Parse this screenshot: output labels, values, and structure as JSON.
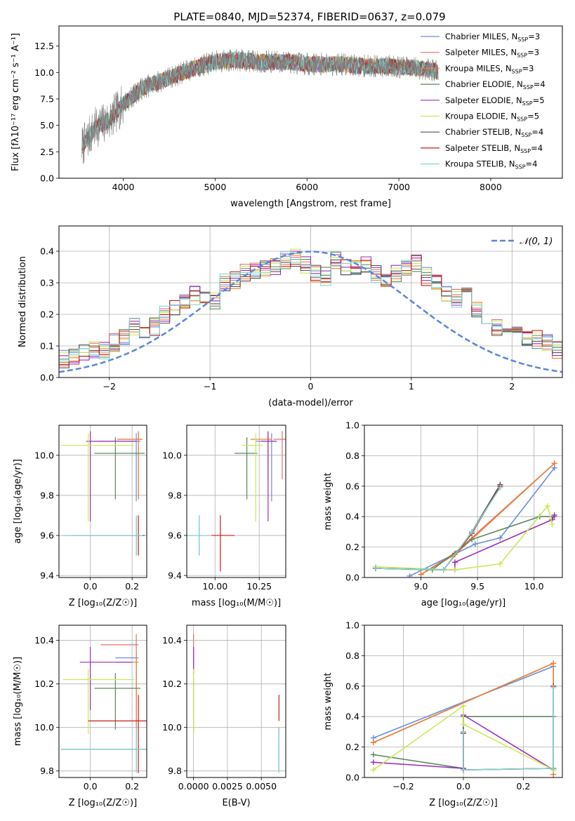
{
  "title": "PLATE=0840, MJD=52374, FIBERID=0637, z=0.079",
  "colors": {
    "Chabrier MILES": "#6a8fd8",
    "Salpeter MILES": "#e0726a",
    "Kroupa MILES": "#e8823a",
    "Chabrier ELODIE": "#5a8a5a",
    "Salpeter ELODIE": "#9a2fb8",
    "Kroupa ELODIE": "#cce85a",
    "Chabrier STELIB": "#555555",
    "Salpeter STELIB": "#c81e1e",
    "Kroupa STELIB": "#7fd8d8",
    "normal": "#5b86d6",
    "spectrum": "#808080"
  },
  "chart_data": [
    {
      "id": "spectrum",
      "type": "line",
      "xlabel": "wavelength [Angstrom, rest frame]",
      "ylabel": "Flux [fλ10⁻¹⁷ erg cm⁻² s⁻¹ A⁻¹]",
      "xlim": [
        3300,
        8780
      ],
      "ylim": [
        0,
        14.4
      ],
      "xticks": [
        4000,
        5000,
        6000,
        7000,
        8000
      ],
      "yticks": [
        0.0,
        2.5,
        5.0,
        7.5,
        10.0,
        12.5
      ],
      "grid": false,
      "legend_position": "right",
      "legend": [
        {
          "prefix": "Chabrier MILES, N",
          "sub": "SSP",
          "suffix": "=3",
          "model": "Chabrier MILES"
        },
        {
          "prefix": "Salpeter MILES, N",
          "sub": "SSP",
          "suffix": "=3",
          "model": "Salpeter MILES"
        },
        {
          "prefix": "Kroupa MILES, N",
          "sub": "SSP",
          "suffix": "=3",
          "model": "Kroupa MILES"
        },
        {
          "prefix": "Chabrier ELODIE, N",
          "sub": "SSP",
          "suffix": "=4",
          "model": "Chabrier ELODIE"
        },
        {
          "prefix": "Salpeter ELODIE, N",
          "sub": "SSP",
          "suffix": "=5",
          "model": "Salpeter ELODIE"
        },
        {
          "prefix": "Kroupa ELODIE, N",
          "sub": "SSP",
          "suffix": "=5",
          "model": "Kroupa ELODIE"
        },
        {
          "prefix": "Chabrier STELIB, N",
          "sub": "SSP",
          "suffix": "=4",
          "model": "Chabrier STELIB"
        },
        {
          "prefix": "Salpeter STELIB, N",
          "sub": "SSP",
          "suffix": "=4",
          "model": "Salpeter STELIB"
        },
        {
          "prefix": "Kroupa STELIB, N",
          "sub": "SSP",
          "suffix": "=4",
          "model": "Kroupa STELIB"
        }
      ],
      "continuum_x": [
        3550,
        3700,
        3850,
        4000,
        4200,
        4500,
        4800,
        5000,
        5200,
        5500,
        5800,
        6000,
        6300,
        6600,
        6900,
        7200,
        7400,
        7420
      ],
      "continuum_y": [
        3.0,
        4.8,
        5.5,
        7.0,
        8.5,
        9.5,
        10.5,
        11.0,
        11.2,
        11.0,
        11.0,
        10.8,
        10.8,
        10.6,
        10.6,
        10.4,
        10.2,
        10.0
      ],
      "observed_range": [
        3550,
        7430
      ]
    },
    {
      "id": "residuals",
      "type": "histogram",
      "xlabel": "(data-model)/error",
      "ylabel": "Normed distribution",
      "xlim": [
        -2.5,
        2.5
      ],
      "ylim": [
        0,
        0.48
      ],
      "xticks": [
        -2,
        -1,
        0,
        1,
        2
      ],
      "yticks": [
        0.0,
        0.1,
        0.2,
        0.3,
        0.4
      ],
      "grid": true,
      "legend_position": "top-right",
      "legend_label": "𝒩(0, 1)",
      "bin_width": 0.1,
      "base_values": [
        0.035,
        0.035,
        0.04,
        0.065,
        0.065,
        0.06,
        0.07,
        0.08,
        0.085,
        0.085,
        0.11,
        0.13,
        0.16,
        0.13,
        0.16,
        0.2,
        0.22,
        0.24,
        0.26,
        0.26,
        0.24,
        0.3,
        0.31,
        0.33,
        0.34,
        0.34,
        0.35,
        0.37,
        0.38,
        0.36,
        0.33,
        0.32,
        0.37,
        0.35,
        0.35,
        0.36,
        0.33,
        0.31,
        0.33,
        0.35,
        0.36,
        0.32,
        0.3,
        0.27,
        0.25,
        0.26,
        0.22,
        0.2,
        0.16,
        0.14,
        0.14,
        0.13,
        0.12,
        0.11,
        0.09,
        0.08,
        0.07,
        0.06,
        0.05,
        0.04
      ],
      "base_start": -3.0
    },
    {
      "id": "age-vs-Z",
      "type": "errorbar",
      "xlabel": "Z [log₁₀(Z/Z☉)]",
      "ylabel": "age  [log₁₀(age/yr)]",
      "xlim": [
        -0.15,
        0.27
      ],
      "ylim": [
        9.39,
        10.15
      ],
      "xticks": [
        0.0,
        0.2
      ],
      "yticks": [
        9.4,
        9.6,
        9.8,
        10.0
      ],
      "grid": true,
      "points": [
        {
          "model": "Chabrier MILES",
          "x": 0.22,
          "y": 10.07,
          "xerr": [
            0.18,
            0.02
          ],
          "yerr": [
            0.3,
            0.04
          ]
        },
        {
          "model": "Salpeter MILES",
          "x": 0.23,
          "y": 10.08,
          "xerr": [
            0.1,
            0.02
          ],
          "yerr": [
            0.3,
            0.04
          ]
        },
        {
          "model": "Kroupa MILES",
          "x": 0.23,
          "y": 10.08,
          "xerr": [
            0.1,
            0.02
          ],
          "yerr": [
            0.3,
            0.03
          ]
        },
        {
          "model": "Chabrier ELODIE",
          "x": 0.12,
          "y": 10.01,
          "xerr": [
            0.1,
            0.14
          ],
          "yerr": [
            0.23,
            0.08
          ]
        },
        {
          "model": "Salpeter ELODIE",
          "x": 0.0,
          "y": 10.07,
          "xerr": [
            0.02,
            0.22
          ],
          "yerr": [
            0.4,
            0.05
          ]
        },
        {
          "model": "Kroupa ELODIE",
          "x": -0.01,
          "y": 10.05,
          "xerr": [
            0.13,
            0.22
          ],
          "yerr": [
            0.38,
            0.06
          ]
        },
        {
          "model": "Chabrier STELIB",
          "x": 0.22,
          "y": 9.6,
          "xerr": [
            0.35,
            0.04
          ],
          "yerr": [
            0.1,
            0.1
          ]
        },
        {
          "model": "Salpeter STELIB",
          "x": 0.23,
          "y": 9.6,
          "xerr": [
            0.32,
            0.02
          ],
          "yerr": [
            0.1,
            0.1
          ]
        },
        {
          "model": "Kroupa STELIB",
          "x": 0.22,
          "y": 9.6,
          "xerr": [
            0.35,
            0.03
          ],
          "yerr": [
            0.1,
            0.1
          ]
        }
      ]
    },
    {
      "id": "age-vs-mass",
      "type": "errorbar",
      "xlabel": "mass [log₁₀(M/M☉)]",
      "ylabel": "",
      "xlim": [
        9.84,
        10.4
      ],
      "ylim": [
        9.39,
        10.15
      ],
      "xticks": [
        10.0,
        10.25
      ],
      "yticks": [
        9.4,
        9.6,
        9.8,
        10.0
      ],
      "grid": true,
      "points": [
        {
          "model": "Chabrier MILES",
          "x": 10.32,
          "y": 10.07,
          "xerr": [
            0.09,
            0.02
          ],
          "yerr": [
            0.3,
            0.04
          ]
        },
        {
          "model": "Salpeter MILES",
          "x": 10.38,
          "y": 10.08,
          "xerr": [
            0.05,
            0.03
          ],
          "yerr": [
            0.2,
            0.04
          ]
        },
        {
          "model": "Kroupa MILES",
          "x": 10.3,
          "y": 10.08,
          "xerr": [
            0.1,
            0.02
          ],
          "yerr": [
            0.2,
            0.03
          ]
        },
        {
          "model": "Chabrier ELODIE",
          "x": 10.18,
          "y": 10.01,
          "xerr": [
            0.07,
            0.06
          ],
          "yerr": [
            0.23,
            0.08
          ]
        },
        {
          "model": "Salpeter ELODIE",
          "x": 10.3,
          "y": 10.07,
          "xerr": [
            0.04,
            0.05
          ],
          "yerr": [
            0.4,
            0.05
          ]
        },
        {
          "model": "Kroupa ELODIE",
          "x": 10.23,
          "y": 10.05,
          "xerr": [
            0.08,
            0.04
          ],
          "yerr": [
            0.38,
            0.06
          ]
        },
        {
          "model": "Chabrier STELIB",
          "x": 9.91,
          "y": 9.6,
          "xerr": [
            0.07,
            0.06
          ],
          "yerr": [
            0.1,
            0.1
          ]
        },
        {
          "model": "Salpeter STELIB",
          "x": 10.03,
          "y": 9.6,
          "xerr": [
            0.05,
            0.08
          ],
          "yerr": [
            0.18,
            0.1
          ]
        },
        {
          "model": "Kroupa STELIB",
          "x": 9.91,
          "y": 9.6,
          "xerr": [
            0.07,
            0.06
          ],
          "yerr": [
            0.1,
            0.1
          ]
        }
      ]
    },
    {
      "id": "weight-vs-age",
      "type": "line",
      "xlabel": "age  [log₁₀(age/yr)]",
      "ylabel": "mass weight",
      "xlim": [
        8.5,
        10.25
      ],
      "ylim": [
        0,
        1.0
      ],
      "xticks": [
        9.0,
        9.5,
        10.0
      ],
      "yticks": [
        0.0,
        0.2,
        0.4,
        0.6,
        0.8,
        1.0
      ],
      "grid": true,
      "series": [
        {
          "model": "Chabrier MILES",
          "x": [
            8.9,
            9.48,
            9.7,
            10.18
          ],
          "y": [
            0.01,
            0.22,
            0.26,
            0.72
          ]
        },
        {
          "model": "Salpeter MILES",
          "x": [
            9.0,
            9.3,
            10.18
          ],
          "y": [
            0.02,
            0.16,
            0.75
          ]
        },
        {
          "model": "Kroupa MILES",
          "x": [
            9.0,
            9.3,
            10.18
          ],
          "y": [
            0.02,
            0.15,
            0.75
          ]
        },
        {
          "model": "Chabrier ELODIE",
          "x": [
            8.6,
            9.1,
            9.45,
            10.05,
            10.18
          ],
          "y": [
            0.06,
            0.05,
            0.25,
            0.4,
            0.4
          ]
        },
        {
          "model": "Salpeter ELODIE",
          "x": [
            8.6,
            9.3,
            9.3,
            10.16,
            10.18
          ],
          "y": [
            0.06,
            0.05,
            0.1,
            0.38,
            0.41
          ]
        },
        {
          "model": "Kroupa ELODIE",
          "x": [
            8.6,
            9.3,
            9.7,
            10.12,
            10.16
          ],
          "y": [
            0.07,
            0.05,
            0.09,
            0.47,
            0.35
          ]
        },
        {
          "model": "Chabrier STELIB",
          "x": [
            8.6,
            9.2,
            9.45,
            9.7
          ],
          "y": [
            0.06,
            0.05,
            0.3,
            0.61
          ]
        },
        {
          "model": "Salpeter STELIB",
          "x": [
            8.6,
            9.2,
            9.45,
            9.7
          ],
          "y": [
            0.06,
            0.05,
            0.29,
            0.6
          ]
        },
        {
          "model": "Kroupa STELIB",
          "x": [
            8.6,
            9.2,
            9.45,
            9.7
          ],
          "y": [
            0.06,
            0.05,
            0.3,
            0.59
          ]
        }
      ]
    },
    {
      "id": "mass-vs-Z",
      "type": "errorbar",
      "xlabel": "Z [log₁₀(Z/Z☉)]",
      "ylabel": "mass [log₁₀(M/M☉)]",
      "xlim": [
        -0.15,
        0.27
      ],
      "ylim": [
        9.77,
        10.47
      ],
      "xticks": [
        0.0,
        0.2
      ],
      "yticks": [
        9.8,
        10.0,
        10.2,
        10.4
      ],
      "grid": true,
      "points": [
        {
          "model": "Chabrier MILES",
          "x": 0.22,
          "y": 10.32,
          "xerr": [
            0.1,
            0.01
          ],
          "yerr": [
            0.34,
            0.02
          ]
        },
        {
          "model": "Salpeter MILES",
          "x": 0.22,
          "y": 10.38,
          "xerr": [
            0.17,
            0.01
          ],
          "yerr": [
            0.36,
            0.05
          ]
        },
        {
          "model": "Kroupa MILES",
          "x": 0.22,
          "y": 10.3,
          "xerr": [
            0.1,
            0.01
          ],
          "yerr": [
            0.35,
            0.05
          ]
        },
        {
          "model": "Chabrier ELODIE",
          "x": 0.12,
          "y": 10.18,
          "xerr": [
            0.1,
            0.12
          ],
          "yerr": [
            0.19,
            0.07
          ]
        },
        {
          "model": "Salpeter ELODIE",
          "x": 0.0,
          "y": 10.3,
          "xerr": [
            0.05,
            0.2
          ],
          "yerr": [
            0.22,
            0.07
          ]
        },
        {
          "model": "Kroupa ELODIE",
          "x": -0.01,
          "y": 10.22,
          "xerr": [
            0.12,
            0.22
          ],
          "yerr": [
            0.25,
            0.05
          ]
        },
        {
          "model": "Chabrier STELIB",
          "x": 0.22,
          "y": 9.9,
          "xerr": [
            0.36,
            0.05
          ],
          "yerr": [
            0.1,
            0.1
          ]
        },
        {
          "model": "Salpeter STELIB",
          "x": 0.23,
          "y": 10.03,
          "xerr": [
            0.24,
            0.05
          ],
          "yerr": [
            0.24,
            0.12
          ]
        },
        {
          "model": "Kroupa STELIB",
          "x": 0.22,
          "y": 9.9,
          "xerr": [
            0.36,
            0.05
          ],
          "yerr": [
            0.11,
            0.1
          ]
        }
      ]
    },
    {
      "id": "mass-vs-EBV",
      "type": "errorbar",
      "xlabel": "E(B-V)",
      "ylabel": "",
      "xlim": [
        -0.0005,
        0.0068
      ],
      "ylim": [
        9.77,
        10.47
      ],
      "xticks": [
        0.0,
        0.0025,
        0.005
      ],
      "xticklabels": [
        "0.0000",
        "0.0025",
        "0.0050"
      ],
      "yticks": [
        9.8,
        10.0,
        10.2,
        10.4
      ],
      "grid": true,
      "points": [
        {
          "model": "Chabrier MILES",
          "x": 0.0,
          "y": 10.32,
          "xerr": [
            0,
            0
          ],
          "yerr": [
            0.05,
            0.05
          ]
        },
        {
          "model": "Salpeter MILES",
          "x": 0.0,
          "y": 10.38,
          "xerr": [
            0,
            0
          ],
          "yerr": [
            0.05,
            0.05
          ]
        },
        {
          "model": "Kroupa MILES",
          "x": 0.0,
          "y": 10.3,
          "xerr": [
            0,
            0
          ],
          "yerr": [
            0.05,
            0.05
          ]
        },
        {
          "model": "Chabrier ELODIE",
          "x": 0.0,
          "y": 10.18,
          "xerr": [
            0,
            0
          ],
          "yerr": [
            0.2,
            0.05
          ]
        },
        {
          "model": "Salpeter ELODIE",
          "x": 0.0,
          "y": 10.3,
          "xerr": [
            0,
            0
          ],
          "yerr": [
            0.06,
            0.07
          ]
        },
        {
          "model": "Kroupa ELODIE",
          "x": 0.0,
          "y": 10.22,
          "xerr": [
            0,
            0
          ],
          "yerr": [
            0.25,
            0.05
          ]
        },
        {
          "model": "Chabrier STELIB",
          "x": 0.0063,
          "y": 9.9,
          "xerr": [
            0,
            0
          ],
          "yerr": [
            0.1,
            0.1
          ]
        },
        {
          "model": "Salpeter STELIB",
          "x": 0.0063,
          "y": 10.03,
          "xerr": [
            0,
            0
          ],
          "yerr": [
            0.0,
            0.12
          ]
        },
        {
          "model": "Kroupa STELIB",
          "x": 0.0063,
          "y": 9.9,
          "xerr": [
            0,
            0
          ],
          "yerr": [
            0.11,
            0.1
          ]
        }
      ]
    },
    {
      "id": "weight-vs-Z",
      "type": "line",
      "xlabel": "Z [log₁₀(Z/Z☉)]",
      "ylabel": "mass weight",
      "xlim": [
        -0.33,
        0.33
      ],
      "ylim": [
        0,
        1.0
      ],
      "xticks": [
        -0.2,
        0.0,
        0.2
      ],
      "yticks": [
        0.0,
        0.2,
        0.4,
        0.6,
        0.8,
        1.0
      ],
      "grid": true,
      "series": [
        {
          "model": "Chabrier MILES",
          "x": [
            -0.3,
            0.3
          ],
          "y": [
            0.26,
            0.73
          ]
        },
        {
          "model": "Salpeter MILES",
          "x": [
            -0.3,
            0.3,
            0.3
          ],
          "y": [
            0.23,
            0.75,
            0.02
          ]
        },
        {
          "model": "Kroupa MILES",
          "x": [
            -0.3,
            0.3,
            0.3
          ],
          "y": [
            0.23,
            0.75,
            0.02
          ]
        },
        {
          "model": "Chabrier ELODIE",
          "x": [
            -0.3,
            0.0,
            0.0,
            0.3,
            0.3
          ],
          "y": [
            0.15,
            0.06,
            0.4,
            0.4,
            0.06
          ]
        },
        {
          "model": "Salpeter ELODIE",
          "x": [
            -0.3,
            0.0,
            0.0,
            0.3
          ],
          "y": [
            0.1,
            0.06,
            0.41,
            0.05
          ]
        },
        {
          "model": "Kroupa ELODIE",
          "x": [
            -0.3,
            0.0,
            0.0,
            0.3
          ],
          "y": [
            0.05,
            0.47,
            0.35,
            0.05
          ]
        },
        {
          "model": "Chabrier STELIB",
          "x": [
            0.0,
            0.0,
            0.3,
            0.3
          ],
          "y": [
            0.3,
            0.05,
            0.06,
            0.6
          ]
        },
        {
          "model": "Salpeter STELIB",
          "x": [
            0.0,
            0.0,
            0.3,
            0.3
          ],
          "y": [
            0.29,
            0.05,
            0.06,
            0.6
          ]
        },
        {
          "model": "Kroupa STELIB",
          "x": [
            0.0,
            0.0,
            0.3,
            0.3
          ],
          "y": [
            0.3,
            0.05,
            0.06,
            0.59
          ]
        }
      ]
    }
  ]
}
